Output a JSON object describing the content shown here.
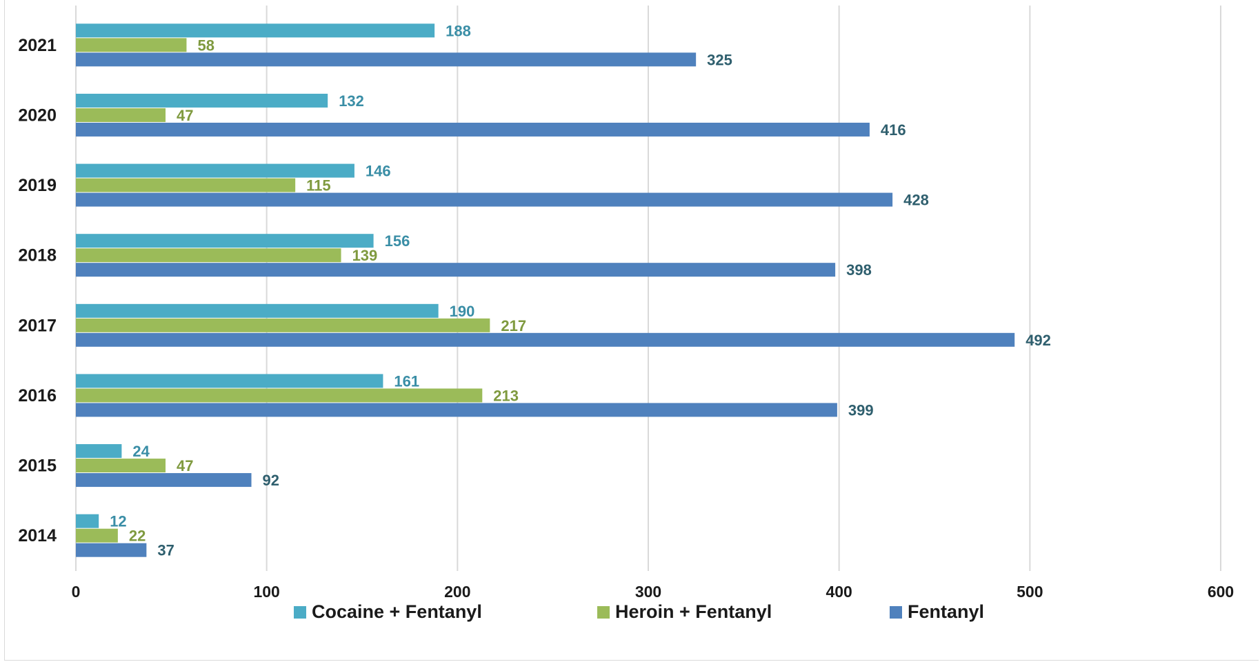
{
  "colors": {
    "cocaine_fentanyl": "#4bacc6",
    "heroin_fentanyl": "#9bbb59",
    "fentanyl": "#4f81bd",
    "cocaine_label": "#3a8ea6",
    "heroin_label": "#7f9a3f",
    "fentanyl_label": "#2f5f6e",
    "gridline": "#d9d9d9",
    "axis_text": "#1a1a1a"
  },
  "legend": {
    "items": [
      {
        "label": "Cocaine + Fentanyl",
        "color": "#4bacc6"
      },
      {
        "label": "Heroin + Fentanyl",
        "color": "#9bbb59"
      },
      {
        "label": "Fentanyl",
        "color": "#4f81bd"
      }
    ]
  },
  "chart_data": {
    "type": "bar",
    "orientation": "horizontal",
    "categories": [
      "2014",
      "2015",
      "2016",
      "2017",
      "2018",
      "2019",
      "2020",
      "2021"
    ],
    "series": [
      {
        "name": "Cocaine + Fentanyl",
        "values": [
          12,
          24,
          161,
          190,
          156,
          146,
          132,
          188
        ]
      },
      {
        "name": "Heroin + Fentanyl",
        "values": [
          22,
          47,
          213,
          217,
          139,
          115,
          47,
          58
        ]
      },
      {
        "name": "Fentanyl",
        "values": [
          37,
          92,
          399,
          492,
          398,
          428,
          416,
          325
        ]
      }
    ],
    "xlim": [
      0,
      600
    ],
    "xticks": [
      "0",
      "100",
      "200",
      "300",
      "400",
      "500",
      "600"
    ],
    "grid": true,
    "data_labels": true,
    "legend_position": "bottom",
    "title": "",
    "xlabel": "",
    "ylabel": ""
  }
}
